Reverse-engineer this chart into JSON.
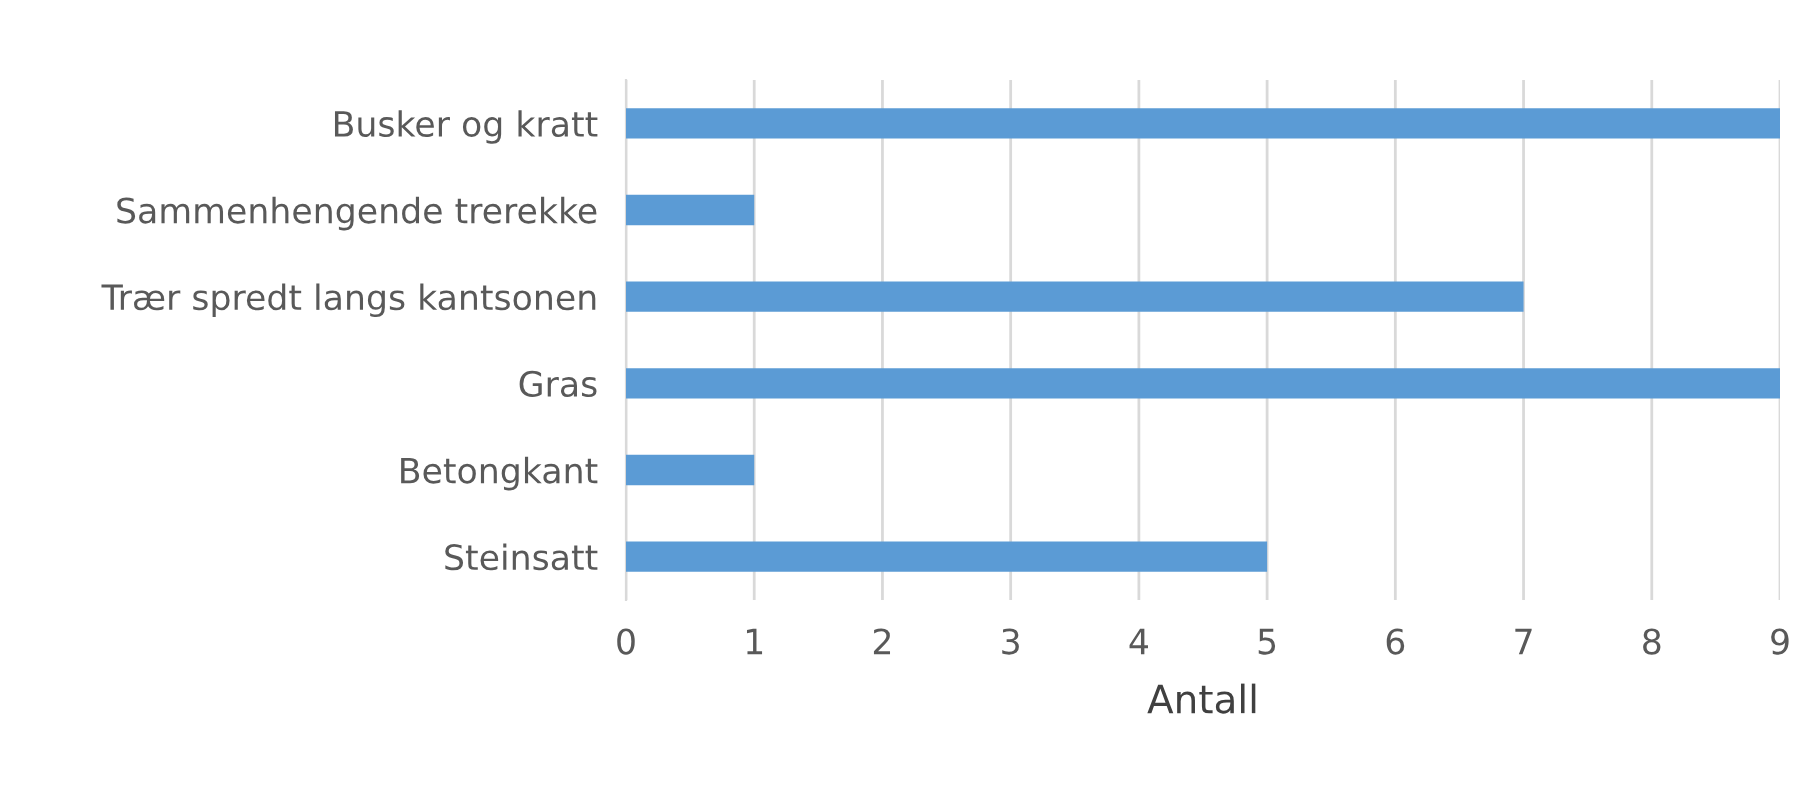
{
  "chart_data": {
    "type": "bar",
    "orientation": "horizontal",
    "xlabel": "Antall",
    "categories": [
      "Busker og kratt",
      "Sammenhengende trerekke",
      "Trær spredt langs kantsonen",
      "Gras",
      "Betongkant",
      "Steinsatt"
    ],
    "values": [
      9,
      1,
      7,
      9,
      1,
      5
    ],
    "color": "#5b9bd5",
    "xlim": [
      0,
      9
    ],
    "xticks": [
      0,
      1,
      2,
      3,
      4,
      5,
      6,
      7,
      8,
      9
    ],
    "grid": "x",
    "legend": false
  }
}
